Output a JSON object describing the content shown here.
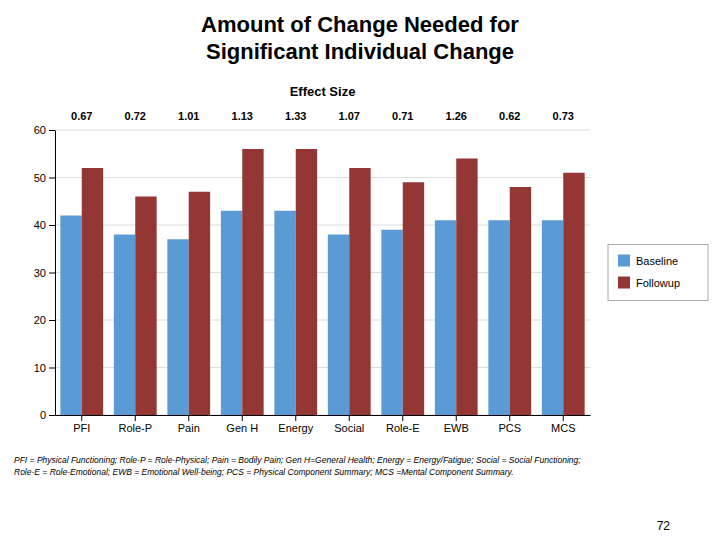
{
  "chart_data": {
    "type": "bar",
    "title": "Amount of Change Needed for\nSignificant Individual Change",
    "subtitle": "Effect Size",
    "categories": [
      "PFI",
      "Role-P",
      "Pain",
      "Gen H",
      "Energy",
      "Social",
      "Role-E",
      "EWB",
      "PCS",
      "MCS"
    ],
    "effect_sizes": [
      0.67,
      0.72,
      1.01,
      1.13,
      1.33,
      1.07,
      0.71,
      1.26,
      0.62,
      0.73
    ],
    "series": [
      {
        "name": "Baseline",
        "color": "#5B9BD5",
        "values": [
          42,
          38,
          37,
          43,
          43,
          38,
          39,
          41,
          41,
          41
        ]
      },
      {
        "name": "Followup",
        "color": "#943634",
        "values": [
          52,
          46,
          47,
          56,
          56,
          52,
          49,
          54,
          48,
          51
        ]
      }
    ],
    "ylim": [
      0,
      60
    ],
    "yticks": [
      0,
      10,
      20,
      30,
      40,
      50,
      60
    ],
    "grid": true,
    "legend": "right",
    "footnote": "PFI = Physical Functioning; Role-P = Role-Physical; Pain = Bodily Pain; Gen H=General Health; Energy = Energy/Fatigue; Social = Social Functioning;\nRole-E = Role-Emotional; EWB = Emotional Well-being; PCS = Physical Component Summary; MCS =Mental Component Summary.",
    "page_number": "72"
  }
}
